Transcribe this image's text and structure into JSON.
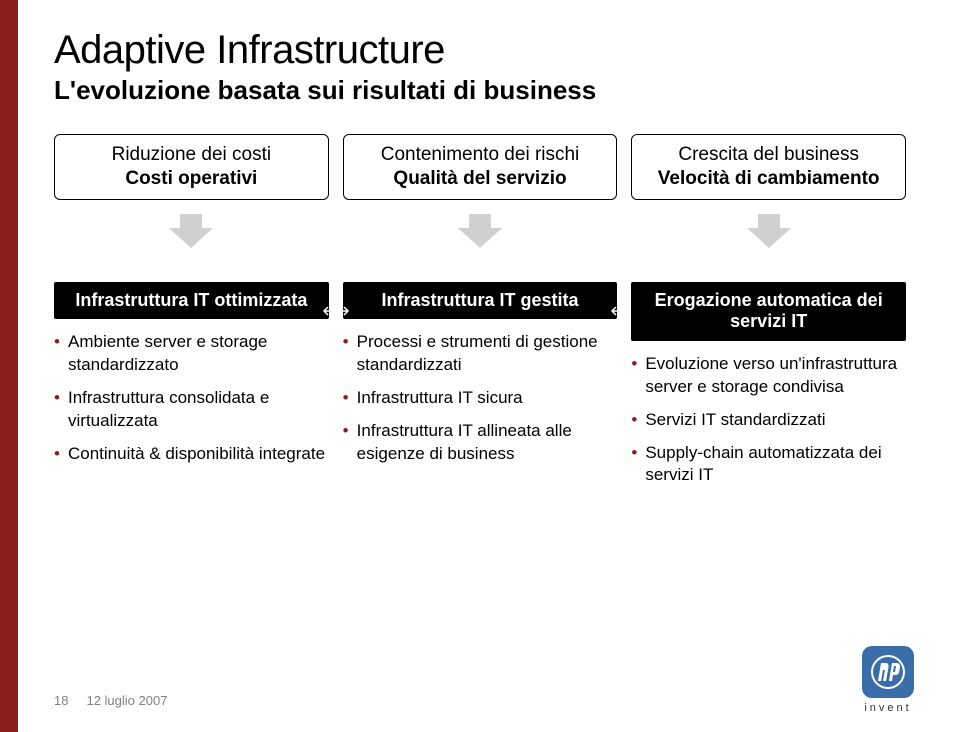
{
  "colors": {
    "accent_bar": "#8a1e1b",
    "pill_border": "#000000",
    "arrow_fill": "#d0d0d0",
    "blackbox_bg": "#000000",
    "blackbox_fg": "#ffffff",
    "bullet_color": "#8a1e1b",
    "footer_text": "#808080",
    "hp_badge_bg": "#3b6ea8"
  },
  "sizes": {
    "title_pt": 40,
    "subtitle_pt": 26,
    "pill_pt": 19,
    "blackbox_pt": 18,
    "bullet_pt": 17,
    "footer_pt": 13
  },
  "title": "Adaptive Infrastructure",
  "subtitle": "L'evoluzione basata sui risultati di business",
  "pills": [
    {
      "line1": "Riduzione dei costi",
      "line2": "Costi operativi"
    },
    {
      "line1": "Contenimento dei rischi",
      "line2": "Qualità del servizio"
    },
    {
      "line1": "Crescita del business",
      "line2": "Velocità di cambiamento"
    }
  ],
  "columns": [
    {
      "heading": "Infrastruttura IT ottimizzata",
      "bullets": [
        "Ambiente server e storage standardizzato",
        "Infrastruttura consolidata e virtualizzata",
        "Continuità & disponibilità integrate"
      ]
    },
    {
      "heading": "Infrastruttura IT gestita",
      "bullets": [
        "Processi e strumenti di gestione standardizzati",
        "Infrastruttura IT sicura",
        "Infrastruttura IT allineata alle esigenze di business"
      ]
    },
    {
      "heading": "Erogazione automatica dei servizi IT",
      "bullets": [
        "Evoluzione verso un'infrastruttura server e storage condivisa",
        "Servizi IT standardizzati",
        "Supply-chain automatizzata dei servizi IT"
      ]
    }
  ],
  "footer": {
    "page": "18",
    "date": "12 luglio 2007"
  },
  "logo": {
    "tagline": "invent"
  }
}
